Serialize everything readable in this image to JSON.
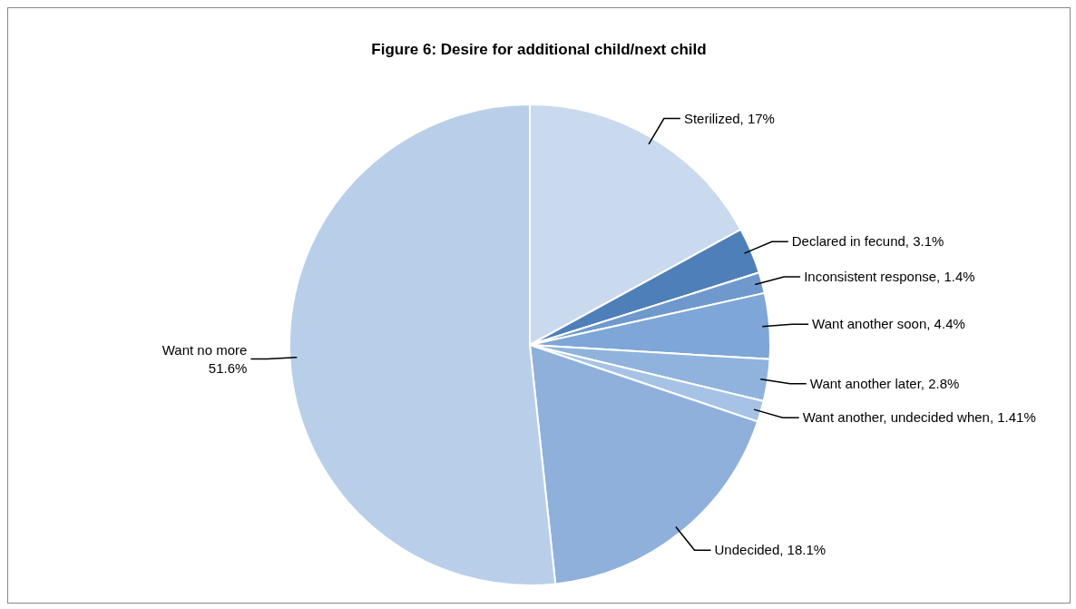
{
  "chart_data": {
    "type": "pie",
    "title": "Figure 6: Desire for additional child/next child",
    "categories": [
      "Sterilized",
      "Declared in fecund",
      "Inconsistent response",
      "Want another soon",
      "Want another later",
      "Want another, undecided when",
      "Undecided",
      "Want no more"
    ],
    "values": [
      17,
      3.1,
      1.4,
      4.4,
      2.8,
      1.41,
      18.1,
      51.6
    ],
    "value_labels": [
      "17%",
      "3.1%",
      "1.4%",
      "4.4%",
      "2.8%",
      "1.41%",
      "18.1%",
      "51.6%"
    ],
    "colors": [
      "#c9d9ee",
      "#4f7fb8",
      "#6f99cc",
      "#7ea6d6",
      "#8fb3dd",
      "#a6c3e6",
      "#8eb0db",
      "#b9cfe9"
    ]
  }
}
